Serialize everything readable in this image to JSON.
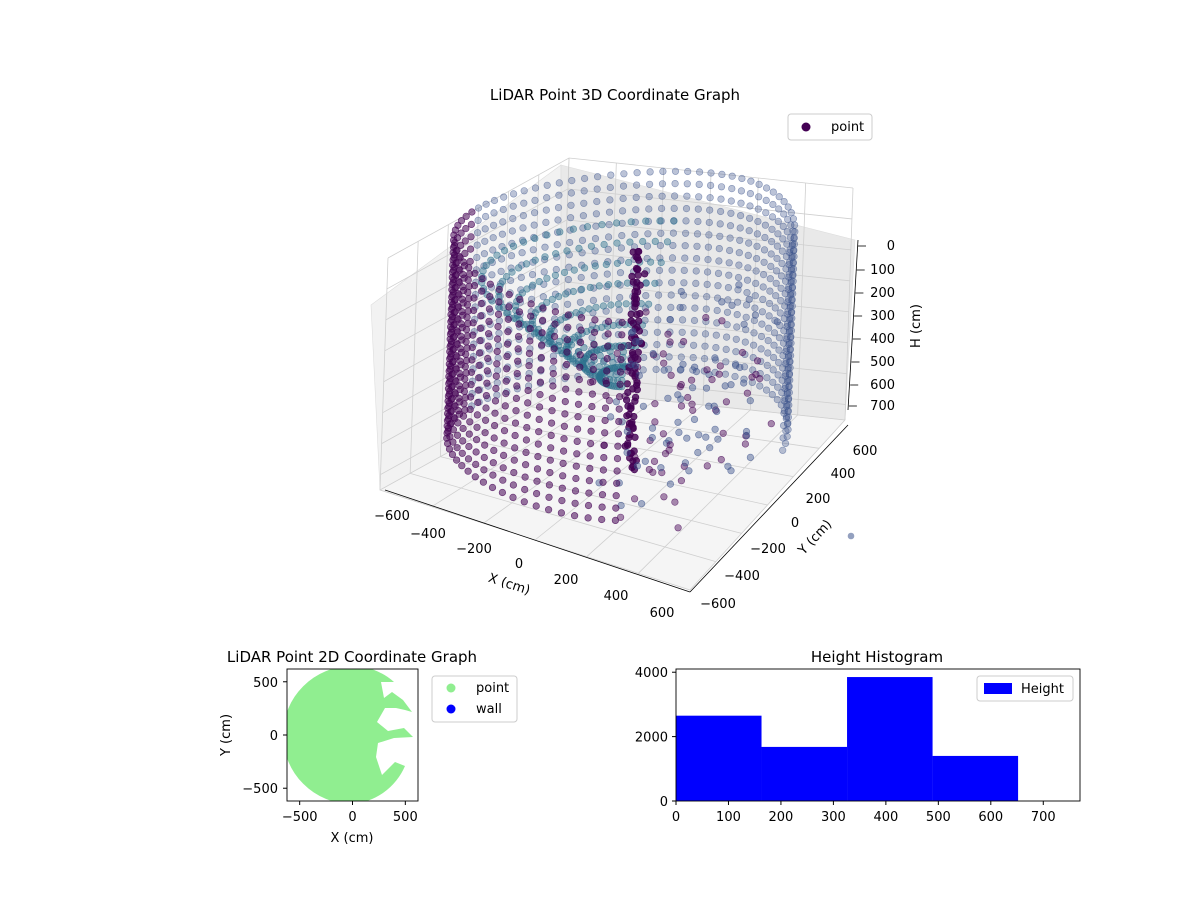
{
  "colors": {
    "point_dark": "#440154",
    "point_mid": "#3b528b",
    "point_teal": "#2c728e",
    "point_light": "#21918c",
    "scatter2d_point": "#90ee90",
    "scatter2d_wall": "#0000ff",
    "histogram": "#0000ff"
  },
  "chart_data": [
    {
      "id": "lidar-3d",
      "type": "scatter",
      "title": "LiDAR Point 3D Coordinate Graph",
      "xlabel": "X (cm)",
      "ylabel": "Y (cm)",
      "zlabel": "H (cm)",
      "xticks": [
        "−600",
        "−400",
        "−200",
        "0",
        "200",
        "400",
        "600"
      ],
      "yticks": [
        "−600",
        "−400",
        "−200",
        "0",
        "200",
        "400",
        "600"
      ],
      "zticks": [
        "0",
        "100",
        "200",
        "300",
        "400",
        "500",
        "600",
        "700"
      ],
      "xlim": [
        -600,
        600
      ],
      "ylim": [
        -600,
        600
      ],
      "zlim": [
        0,
        750
      ],
      "z_axis_inverted": true,
      "grid": true,
      "legend": {
        "placement": "upper-right",
        "entries": [
          "point"
        ]
      },
      "description_series": [
        {
          "name": "point",
          "shape": "cylindrical wall of points, radius ~600 cm, heights 0–650 cm, plus interior floor cone and scattered clusters"
        }
      ]
    },
    {
      "id": "lidar-2d",
      "type": "scatter",
      "title": "LiDAR Point 2D Coordinate Graph",
      "xlabel": "X (cm)",
      "ylabel": "Y (cm)",
      "xticks": [
        "−500",
        "0",
        "500"
      ],
      "yticks": [
        "500",
        "0",
        "−500"
      ],
      "xlim": [
        -620,
        620
      ],
      "ylim": [
        -620,
        620
      ],
      "legend": {
        "placement": "outside-right",
        "entries": [
          "point",
          "wall"
        ]
      },
      "series": [
        {
          "name": "point",
          "region": "filled disc of radius ~600 cm clipped to x ≤ 620, with notches on the right side"
        },
        {
          "name": "wall",
          "region": "none visible"
        }
      ]
    },
    {
      "id": "height-hist",
      "type": "bar",
      "title": "Height Histogram",
      "xticks": [
        "0",
        "100",
        "200",
        "300",
        "400",
        "500",
        "600",
        "700"
      ],
      "yticks": [
        "0",
        "2000",
        "4000"
      ],
      "xlim": [
        0,
        770
      ],
      "ylim": [
        0,
        4100
      ],
      "legend": {
        "placement": "upper-right",
        "entries": [
          "Height"
        ]
      },
      "bins": [
        {
          "start": 0,
          "end": 163,
          "count": 2650
        },
        {
          "start": 163,
          "end": 326,
          "count": 1680
        },
        {
          "start": 326,
          "end": 489,
          "count": 3850
        },
        {
          "start": 489,
          "end": 652,
          "count": 1400
        }
      ]
    }
  ]
}
